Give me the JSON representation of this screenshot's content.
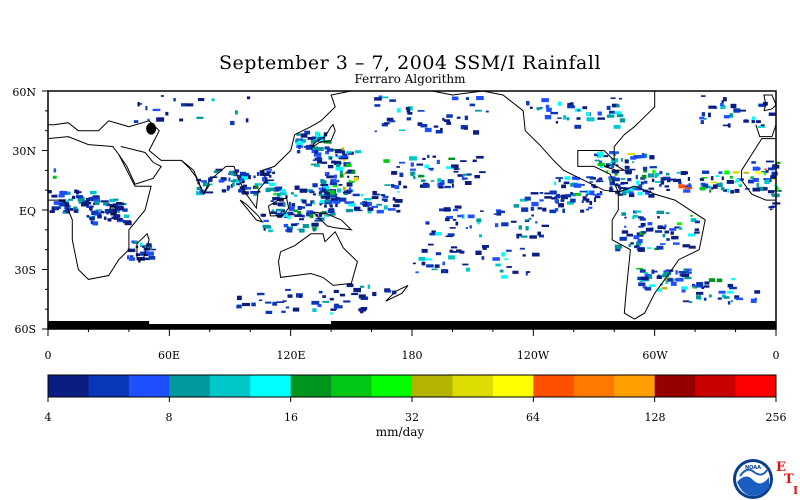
{
  "title": "September 3 – 7, 2004 SSM/I Rainfall",
  "subtitle": "Ferraro Algorithm",
  "latitude_labels": [
    "60N",
    "30N",
    "EQ",
    "30S",
    "60S"
  ],
  "longitude_labels": [
    "0",
    "60E",
    "120E",
    "180",
    "120W",
    "60W",
    "0"
  ],
  "colorbar": {
    "colors": [
      "#0a1e82",
      "#0a36b8",
      "#1e50ff",
      "#00999e",
      "#00c8c8",
      "#00ffff",
      "#00961e",
      "#00c814",
      "#00ff00",
      "#b4b400",
      "#dcdc00",
      "#ffff00",
      "#ff5000",
      "#ff7800",
      "#ffa000",
      "#960000",
      "#c80000",
      "#ff0000"
    ],
    "tick_labels": [
      "4",
      "8",
      "16",
      "32",
      "64",
      "128",
      "256"
    ],
    "units": "mm/day"
  },
  "logo": {
    "icon": "noaa-logo-icon",
    "text": "NOAA"
  },
  "eti_letters": [
    "E",
    "T",
    "I"
  ]
}
